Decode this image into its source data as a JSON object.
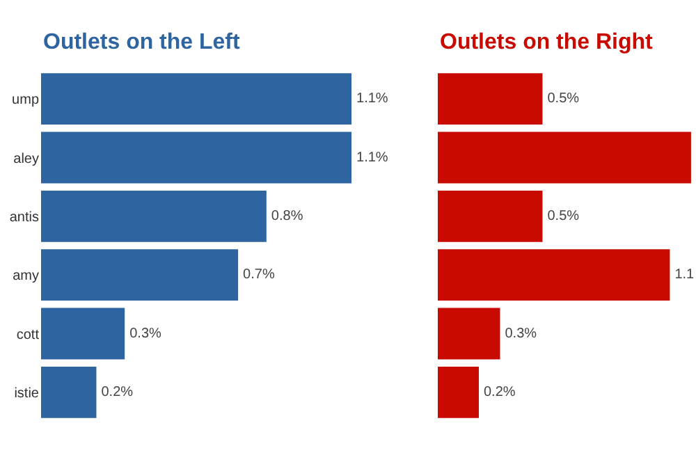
{
  "chart_data": [
    {
      "type": "bar",
      "orientation": "horizontal",
      "title": "Outlets on the Left",
      "categories": [
        "ump",
        "aley",
        "antis",
        "amy",
        "cott",
        "istie"
      ],
      "series": [
        {
          "color": "#2e64a0",
          "values": [
            1.1,
            1.1,
            0.8,
            0.7,
            0.3,
            0.2
          ],
          "value_labels": [
            "1.1%",
            "1.1%",
            "0.8%",
            "0.7%",
            "0.3%",
            "0.2%"
          ]
        }
      ],
      "xlim": [
        0,
        1.1
      ],
      "tick_labels": "y"
    },
    {
      "type": "bar",
      "orientation": "horizontal",
      "title": "Outlets on the Right",
      "categories": [
        null,
        null,
        null,
        null,
        null,
        null
      ],
      "series": [
        {
          "color": "#c80a00",
          "values": [
            0.5,
            1.2,
            0.5,
            1.1,
            0.3,
            0.2
          ],
          "value_labels": [
            "0.5%",
            null,
            "0.5%",
            "1.1",
            "0.3%",
            "0.2%"
          ]
        }
      ],
      "xlim": [
        0,
        1.22
      ],
      "tick_labels": false
    }
  ]
}
